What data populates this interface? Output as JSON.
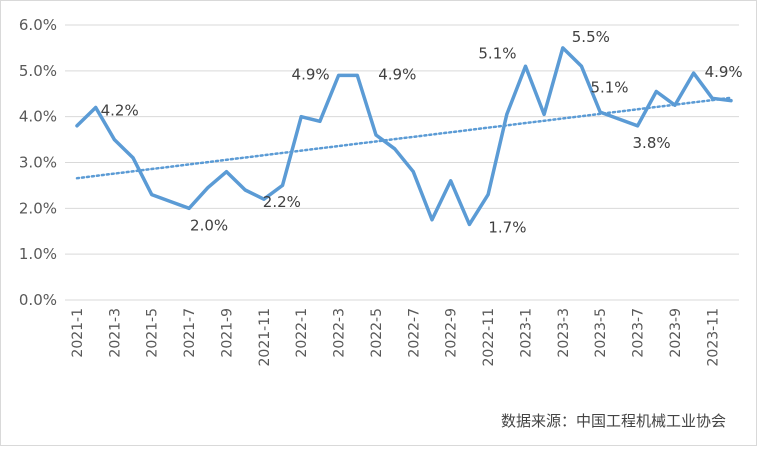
{
  "chart_data": {
    "type": "line",
    "title": "",
    "xlabel": "",
    "ylabel": "",
    "ylim": [
      0,
      6
    ],
    "y_ticks": [
      "0.0%",
      "1.0%",
      "2.0%",
      "3.0%",
      "4.0%",
      "5.0%",
      "6.0%"
    ],
    "y_tick_values": [
      0,
      1,
      2,
      3,
      4,
      5,
      6
    ],
    "grid": "horizontal",
    "legend": "none",
    "x_tick_labels": [
      "2021-1",
      "2021-3",
      "2021-5",
      "2021-7",
      "2021-9",
      "2021-11",
      "2022-1",
      "2022-3",
      "2022-5",
      "2022-7",
      "2022-9",
      "2022-11",
      "2023-1",
      "2023-3",
      "2023-5",
      "2023-7",
      "2023-9",
      "2023-11"
    ],
    "categories": [
      "2021-1",
      "2021-2",
      "2021-3",
      "2021-4",
      "2021-5",
      "2021-6",
      "2021-7",
      "2021-8",
      "2021-9",
      "2021-10",
      "2021-11",
      "2021-12",
      "2022-1",
      "2022-2",
      "2022-3",
      "2022-4",
      "2022-5",
      "2022-6",
      "2022-7",
      "2022-8",
      "2022-9",
      "2022-10",
      "2022-11",
      "2022-12",
      "2023-1",
      "2023-2",
      "2023-3",
      "2023-4",
      "2023-5",
      "2023-6",
      "2023-7",
      "2023-8",
      "2023-9",
      "2023-10",
      "2023-11",
      "2023-12"
    ],
    "series": [
      {
        "values": [
          3.8,
          4.2,
          3.5,
          3.1,
          2.3,
          2.15,
          2.0,
          2.45,
          2.8,
          2.4,
          2.2,
          2.5,
          4.0,
          3.9,
          4.9,
          4.9,
          3.6,
          3.3,
          2.8,
          1.75,
          2.6,
          1.65,
          2.3,
          4.05,
          5.1,
          4.05,
          5.5,
          5.1,
          4.1,
          3.95,
          3.8,
          4.55,
          4.25,
          4.95,
          4.4,
          4.35
        ],
        "color": "#5b9bd5"
      }
    ],
    "trendline": {
      "type": "linear",
      "style": "dotted",
      "color": "#5b9bd5"
    },
    "annotations": [
      {
        "text": "4.2%",
        "index": 1
      },
      {
        "text": "2.0%",
        "index": 6
      },
      {
        "text": "2.2%",
        "index": 10
      },
      {
        "text": "4.9%",
        "index": 14
      },
      {
        "text": "4.9%",
        "index": 15
      },
      {
        "text": "1.7%",
        "index": 21
      },
      {
        "text": "5.1%",
        "index": 24
      },
      {
        "text": "5.5%",
        "index": 26
      },
      {
        "text": "5.1%",
        "index": 27
      },
      {
        "text": "3.8%",
        "index": 30
      },
      {
        "text": "4.9%",
        "index": 33
      }
    ]
  },
  "source_text": "数据来源：中国工程机械工业协会"
}
